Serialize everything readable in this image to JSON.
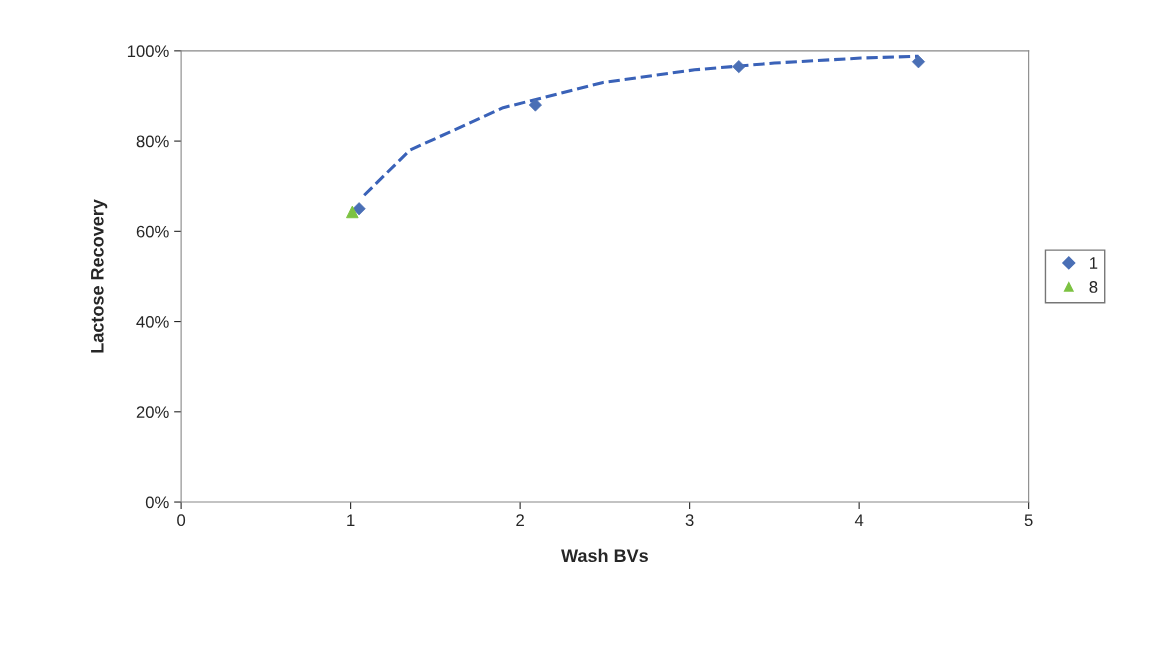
{
  "chart_data": {
    "type": "scatter",
    "xlabel": "Wash BVs",
    "ylabel": "Lactose Recovery",
    "xlim": [
      0,
      5
    ],
    "xticks": [
      0,
      1,
      2,
      3,
      4,
      5
    ],
    "ylim": [
      0,
      100
    ],
    "yticks": [
      {
        "value": 0,
        "label": "0%"
      },
      {
        "value": 20,
        "label": "20%"
      },
      {
        "value": 40,
        "label": "40%"
      },
      {
        "value": 60,
        "label": "60%"
      },
      {
        "value": 80,
        "label": "80%"
      },
      {
        "value": 100,
        "label": "100%"
      }
    ],
    "grid": false,
    "legend": "right",
    "series": [
      {
        "name": "1",
        "color": "#4a6fb5",
        "marker": "diamond",
        "x": [
          1.05,
          2.09,
          3.29,
          4.35
        ],
        "values": [
          65,
          88,
          96.5,
          97.6
        ]
      },
      {
        "name": "8",
        "color": "#7cc242",
        "marker": "triangle",
        "x": [
          1.01
        ],
        "values": [
          64.3
        ]
      },
      {
        "type": "line",
        "color": "#3a62b8",
        "line_style": "dashed",
        "marker": "none",
        "x": [
          1.08,
          1.35,
          1.9,
          2.49,
          3.03,
          3.5,
          4.01,
          4.35
        ],
        "values": [
          68,
          78,
          87.4,
          93,
          95.8,
          97.3,
          98.4,
          98.8
        ]
      }
    ]
  }
}
